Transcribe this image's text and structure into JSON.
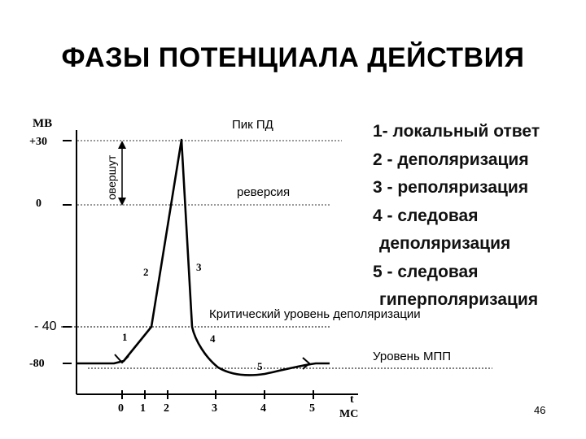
{
  "title": "ФАЗЫ ПОТЕНЦИАЛА ДЕЙСТВИЯ",
  "axes": {
    "y_unit": "МВ",
    "y_ticks": [
      "+30",
      "0",
      "- 40",
      "-80"
    ],
    "x_ticks": [
      "0",
      "1",
      "2",
      "3",
      "4",
      "5"
    ],
    "x_unit_top": "t",
    "x_unit": "МС"
  },
  "labels": {
    "overshoot": "овершут",
    "peak": "Пик ПД",
    "reversion": "реверсия",
    "critical_level": "Критический уровень деполяризации",
    "resting_level": "Уровень МПП"
  },
  "phase_markers": [
    "1",
    "2",
    "3",
    "4",
    "5"
  ],
  "legend": [
    "1- локальный ответ",
    "2 - деполяризация",
    "3 - реполяризация",
    "4 - следовая",
    "деполяризация",
    "5 - следовая",
    "гиперполяризация"
  ],
  "page_number": "46"
}
